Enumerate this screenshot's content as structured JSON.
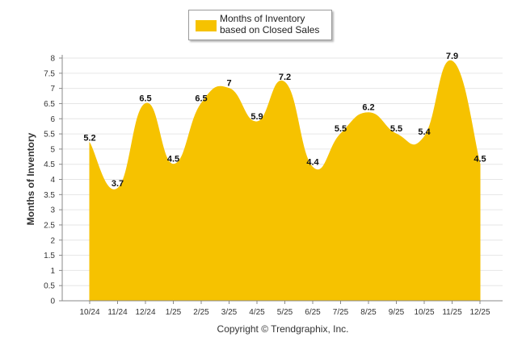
{
  "chart_data": {
    "type": "area",
    "title": "",
    "xlabel": "",
    "ylabel": "Months of Inventory",
    "categories": [
      "10/24",
      "11/24",
      "12/24",
      "1/25",
      "2/25",
      "3/25",
      "4/25",
      "5/25",
      "6/25",
      "7/25",
      "8/25",
      "9/25",
      "10/25",
      "11/25",
      "12/25"
    ],
    "series": [
      {
        "name": "Months of Inventory based on Closed Sales",
        "values": [
          5.2,
          3.7,
          6.5,
          4.5,
          6.5,
          7,
          5.9,
          7.2,
          4.4,
          5.5,
          6.2,
          5.5,
          5.4,
          7.9,
          4.5
        ],
        "labels": [
          "5.2",
          "3.7",
          "6.5",
          "4.5",
          "6.5",
          "7",
          "5.9",
          "7.2",
          "4.4",
          "5.5",
          "6.2",
          "5.5",
          "5.4",
          "7.9",
          "4.5"
        ]
      }
    ],
    "ylim": [
      0,
      8
    ],
    "yticks": [
      "0",
      "0.5",
      "1",
      "1.5",
      "2",
      "2.5",
      "3",
      "3.5",
      "4",
      "4.5",
      "5",
      "5.5",
      "6",
      "6.5",
      "7",
      "7.5",
      "8"
    ],
    "grid": true,
    "legend": "top-center",
    "colors": {
      "fill": "#f6c200",
      "grid": "#e6e6e6",
      "axis": "#888888"
    }
  },
  "legend": {
    "label": "Months of Inventory based on Closed Sales"
  },
  "footer": {
    "copyright": "Copyright © Trendgraphix, Inc."
  }
}
